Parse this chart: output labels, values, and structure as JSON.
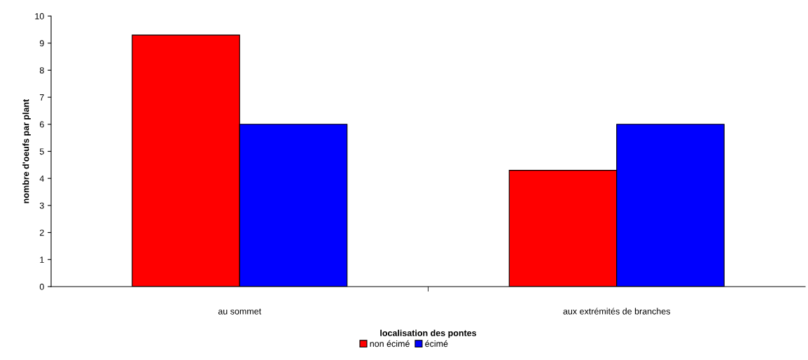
{
  "chart_data": {
    "type": "bar",
    "xlabel": "localisation des pontes",
    "ylabel": "nombre d'oeufs par plant",
    "categories": [
      "au sommet",
      "aux extrémités de branches"
    ],
    "series": [
      {
        "name": "non écimé",
        "color": "#ff0000",
        "values": [
          9.3,
          4.3
        ]
      },
      {
        "name": "écimé",
        "color": "#0000ff",
        "values": [
          6,
          6
        ]
      }
    ],
    "ylim": [
      0,
      10
    ],
    "yticks": [
      0,
      1,
      2,
      3,
      4,
      5,
      6,
      7,
      8,
      9,
      10
    ],
    "grid": false,
    "legend": "bottom"
  }
}
